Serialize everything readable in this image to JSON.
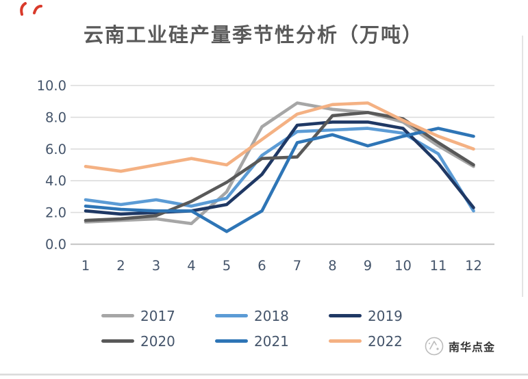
{
  "page": {
    "background_color": "#ffffff",
    "divider_color": "#d9d9d9"
  },
  "chart_data": {
    "type": "line",
    "title": "云南工业硅产量季节性分析（万吨）",
    "xlabel": "",
    "ylabel": "",
    "x": [
      "1",
      "2",
      "3",
      "4",
      "5",
      "6",
      "7",
      "8",
      "9",
      "10",
      "11",
      "12"
    ],
    "ylim": [
      0,
      10
    ],
    "ytick_labels": [
      "0.0",
      "2.0",
      "4.0",
      "6.0",
      "8.0",
      "10.0"
    ],
    "ytick_values": [
      0,
      2,
      4,
      6,
      8,
      10
    ],
    "grid": true,
    "legend_position": "bottom",
    "axis_text_color": "#44546a",
    "gridline_color": "#dcdcdc",
    "series": [
      {
        "name": "2017",
        "color": "#a6a6a6",
        "values": [
          1.4,
          1.5,
          1.6,
          1.3,
          3.3,
          7.4,
          8.9,
          8.5,
          8.3,
          7.7,
          6.2,
          4.9
        ]
      },
      {
        "name": "2018",
        "color": "#5b9bd5",
        "values": [
          2.8,
          2.5,
          2.8,
          2.4,
          2.9,
          5.6,
          7.1,
          7.2,
          7.3,
          7.0,
          5.7,
          2.1
        ]
      },
      {
        "name": "2019",
        "color": "#1f3864",
        "values": [
          2.1,
          1.9,
          2.0,
          2.1,
          2.5,
          4.4,
          7.5,
          7.7,
          7.7,
          7.3,
          5.1,
          2.3
        ]
      },
      {
        "name": "2020",
        "color": "#595959",
        "values": [
          1.5,
          1.6,
          1.8,
          2.7,
          3.9,
          5.4,
          5.5,
          8.1,
          8.3,
          7.9,
          6.4,
          5.0
        ]
      },
      {
        "name": "2021",
        "color": "#2e75b6",
        "values": [
          2.4,
          2.2,
          2.1,
          2.1,
          0.8,
          2.1,
          6.4,
          6.9,
          6.2,
          6.8,
          7.3,
          6.8
        ]
      },
      {
        "name": "2022",
        "color": "#f4b183",
        "values": [
          4.9,
          4.6,
          5.0,
          5.4,
          5.0,
          6.6,
          8.2,
          8.8,
          8.9,
          7.8,
          6.8,
          6.0
        ]
      }
    ]
  },
  "footer": {
    "brand_text": "南华点金",
    "logo_icon": "compass-icon"
  },
  "decorations": {
    "corner_mark_color": "#d93a2b"
  }
}
